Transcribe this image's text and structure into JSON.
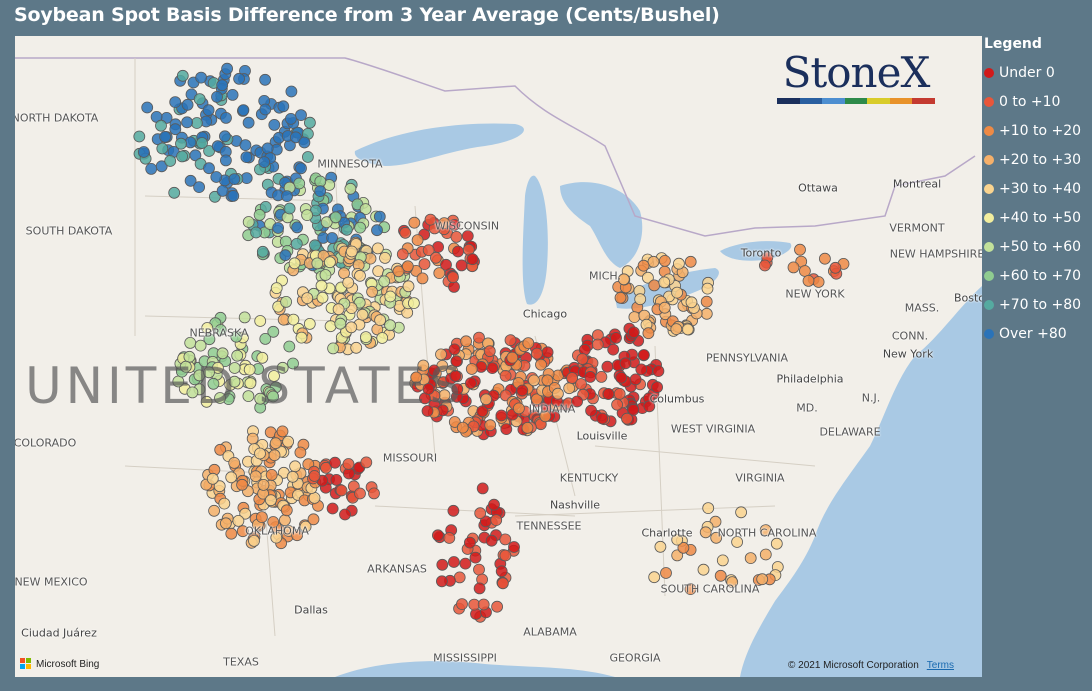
{
  "title": "Soybean Spot Basis Difference from 3 Year Average (Cents/Bushel)",
  "logo": {
    "text": "StoneX",
    "bar_colors": [
      "#1b2f5c",
      "#2a5fa0",
      "#4d8ed0",
      "#2e8a4a",
      "#d9cc2a",
      "#e8922a",
      "#c43a30"
    ]
  },
  "legend": {
    "title": "Legend",
    "items": [
      {
        "label": "Under 0",
        "color": "#d11a1a"
      },
      {
        "label": "0 to +10",
        "color": "#e8563a"
      },
      {
        "label": "+10 to +20",
        "color": "#ee8a45"
      },
      {
        "label": "+20 to +30",
        "color": "#f5b06a"
      },
      {
        "label": "+30 to +40",
        "color": "#fad48f"
      },
      {
        "label": "+40 to +50",
        "color": "#f2ee9e"
      },
      {
        "label": "+50 to +60",
        "color": "#c2e19a"
      },
      {
        "label": "+60 to +70",
        "color": "#8fcc90"
      },
      {
        "label": "+70 to +80",
        "color": "#55aaa0"
      },
      {
        "label": "Over +80",
        "color": "#2a73b8"
      }
    ]
  },
  "map_labels": {
    "country": "UNITED STATES",
    "states": [
      "NORTH DAKOTA",
      "MINNESOTA",
      "SOUTH DAKOTA",
      "WISCONSIN",
      "NEBRASKA",
      "COLORADO",
      "MISSOURI",
      "KENTUCKY",
      "TENNESSEE",
      "OKLAHOMA",
      "ARKANSAS",
      "NEW MEXICO",
      "TEXAS",
      "MISSISSIPPI",
      "ALABAMA",
      "GEORGIA",
      "PENNSYLVANIA",
      "WEST VIRGINIA",
      "VIRGINIA",
      "NORTH CAROLINA",
      "SOUTH CAROLINA",
      "NEW YORK",
      "VERMONT",
      "NEW HAMPSHIRE",
      "DELAWARE",
      "MD.",
      "N.J.",
      "MASS.",
      "CONN.",
      "MICH.",
      "INDIANA"
    ],
    "cities": [
      "Chicago",
      "Columbus",
      "Louisville",
      "Nashville",
      "Charlotte",
      "Dallas",
      "Ciudad Juárez",
      "Philadelphia",
      "New York",
      "Boston",
      "Toronto",
      "Ottawa",
      "Montreal"
    ]
  },
  "attribution": {
    "bing": "Microsoft Bing",
    "copyright": "© 2021 Microsoft Corporation",
    "terms": "Terms"
  }
}
